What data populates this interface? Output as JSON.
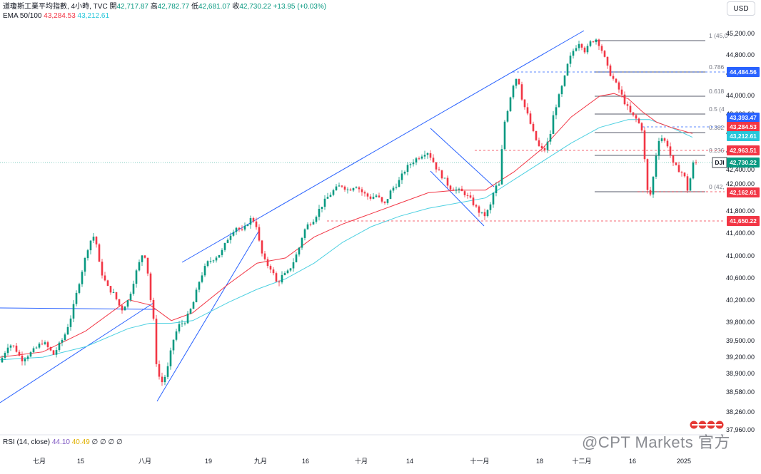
{
  "header": {
    "symbol_title": "道瓊斯工業平均指數, 4小時, TVC",
    "ohlc": [
      {
        "label": "開",
        "value": "42,717.87"
      },
      {
        "label": "高",
        "value": "42,782.77"
      },
      {
        "label": "低",
        "value": "42,681.07"
      },
      {
        "label": "收",
        "value": "42,730.22"
      }
    ],
    "change": "+13.95 (+0.03%)",
    "ema_label": "EMA 50/100",
    "ema50_value": "43,284.53",
    "ema100_value": "43,212.61",
    "currency": "USD"
  },
  "rsi": {
    "label": "RSI (14, close)",
    "value1": "44.10",
    "value2": "40.49",
    "placeholders": "∅ ∅ ∅ ∅"
  },
  "watermark": "@CPT Markets 官方",
  "colors": {
    "up": "#089981",
    "down": "#f23645",
    "ema50": "#f23645",
    "ema100": "#4dd0e1",
    "trendline": "#2962ff",
    "fib": "#787b86",
    "support": "#f23645",
    "resistance_dashed": "#2962ff"
  },
  "chart_data": {
    "type": "candlestick",
    "title": "道瓊斯工業平均指數, 4小時, TVC",
    "ylim": [
      37800,
      45450
    ],
    "y_ticks": [
      "45,200.00",
      "44,800.00",
      "44,400.00",
      "44,000.00",
      "43,600.00",
      "43,200.00",
      "42,800.00",
      "42,400.00",
      "42,000.00",
      "41,800.00",
      "41,400.00",
      "41,000.00",
      "40,600.00",
      "40,200.00",
      "39,800.00",
      "39,500.00",
      "39,200.00",
      "38,900.00",
      "38,580.00",
      "38,260.00",
      "37,960.00"
    ],
    "x_ticks": [
      "七月",
      "15",
      "八月",
      "19",
      "九月",
      "16",
      "十月",
      "14",
      "十一月",
      "18",
      "十二月",
      "16",
      "2025"
    ],
    "price_path": [
      [
        0,
        38900
      ],
      [
        12,
        39250
      ],
      [
        20,
        39200
      ],
      [
        30,
        38950
      ],
      [
        45,
        39100
      ],
      [
        60,
        39300
      ],
      [
        75,
        39050
      ],
      [
        90,
        39400
      ],
      [
        100,
        39800
      ],
      [
        112,
        40500
      ],
      [
        125,
        41200
      ],
      [
        133,
        41350
      ],
      [
        140,
        40700
      ],
      [
        150,
        40350
      ],
      [
        160,
        40200
      ],
      [
        170,
        39900
      ],
      [
        180,
        40100
      ],
      [
        190,
        40600
      ],
      [
        200,
        41000
      ],
      [
        205,
        40900
      ],
      [
        210,
        40200
      ],
      [
        215,
        39700
      ],
      [
        220,
        38700
      ],
      [
        228,
        38500
      ],
      [
        235,
        38800
      ],
      [
        242,
        39300
      ],
      [
        250,
        39600
      ],
      [
        260,
        39700
      ],
      [
        270,
        40000
      ],
      [
        280,
        40500
      ],
      [
        290,
        40800
      ],
      [
        300,
        40900
      ],
      [
        310,
        41000
      ],
      [
        320,
        41300
      ],
      [
        330,
        41500
      ],
      [
        340,
        41400
      ],
      [
        350,
        41650
      ],
      [
        358,
        41600
      ],
      [
        365,
        41050
      ],
      [
        372,
        40800
      ],
      [
        380,
        40700
      ],
      [
        388,
        40400
      ],
      [
        395,
        40550
      ],
      [
        402,
        40600
      ],
      [
        410,
        40800
      ],
      [
        418,
        41050
      ],
      [
        425,
        41400
      ],
      [
        432,
        41550
      ],
      [
        440,
        41650
      ],
      [
        448,
        41850
      ],
      [
        458,
        42050
      ],
      [
        468,
        42200
      ],
      [
        478,
        42300
      ],
      [
        488,
        42200
      ],
      [
        498,
        42300
      ],
      [
        508,
        42150
      ],
      [
        518,
        42050
      ],
      [
        528,
        42100
      ],
      [
        538,
        41900
      ],
      [
        548,
        42200
      ],
      [
        558,
        42350
      ],
      [
        568,
        42600
      ],
      [
        578,
        42750
      ],
      [
        588,
        42850
      ],
      [
        598,
        42950
      ],
      [
        605,
        42800
      ],
      [
        612,
        42600
      ],
      [
        620,
        42450
      ],
      [
        630,
        42250
      ],
      [
        640,
        42200
      ],
      [
        650,
        42150
      ],
      [
        660,
        42000
      ],
      [
        670,
        41800
      ],
      [
        678,
        41700
      ],
      [
        686,
        41850
      ],
      [
        693,
        42250
      ],
      [
        700,
        42300
      ],
      [
        705,
        43400
      ],
      [
        712,
        43800
      ],
      [
        718,
        44200
      ],
      [
        725,
        44400
      ],
      [
        732,
        43900
      ],
      [
        740,
        43600
      ],
      [
        748,
        43250
      ],
      [
        756,
        43000
      ],
      [
        762,
        42950
      ],
      [
        770,
        43200
      ],
      [
        776,
        43700
      ],
      [
        782,
        43950
      ],
      [
        790,
        44300
      ],
      [
        796,
        44650
      ],
      [
        804,
        44900
      ],
      [
        812,
        45050
      ],
      [
        820,
        44850
      ],
      [
        828,
        45050
      ],
      [
        836,
        45100
      ],
      [
        844,
        44850
      ],
      [
        852,
        44500
      ],
      [
        860,
        44300
      ],
      [
        868,
        44100
      ],
      [
        876,
        43850
      ],
      [
        884,
        43650
      ],
      [
        892,
        43550
      ],
      [
        900,
        43350
      ],
      [
        906,
        42200
      ],
      [
        912,
        42100
      ],
      [
        918,
        42800
      ],
      [
        924,
        43250
      ],
      [
        930,
        43150
      ],
      [
        936,
        43050
      ],
      [
        942,
        42700
      ],
      [
        950,
        42600
      ],
      [
        958,
        42500
      ],
      [
        964,
        42150
      ],
      [
        970,
        42700
      ],
      [
        976,
        42730
      ]
    ],
    "ema50_path": [
      [
        0,
        39000
      ],
      [
        60,
        39100
      ],
      [
        120,
        39500
      ],
      [
        180,
        40100
      ],
      [
        210,
        40000
      ],
      [
        240,
        39700
      ],
      [
        270,
        39850
      ],
      [
        320,
        40400
      ],
      [
        360,
        40800
      ],
      [
        400,
        40900
      ],
      [
        440,
        41300
      ],
      [
        480,
        41550
      ],
      [
        520,
        41750
      ],
      [
        560,
        41950
      ],
      [
        600,
        42150
      ],
      [
        640,
        42200
      ],
      [
        680,
        42200
      ],
      [
        720,
        42550
      ],
      [
        760,
        43000
      ],
      [
        800,
        43600
      ],
      [
        840,
        44000
      ],
      [
        860,
        44050
      ],
      [
        880,
        43950
      ],
      [
        900,
        43700
      ],
      [
        920,
        43500
      ],
      [
        940,
        43400
      ],
      [
        970,
        43284
      ]
    ],
    "ema100_path": [
      [
        0,
        38950
      ],
      [
        60,
        39000
      ],
      [
        120,
        39200
      ],
      [
        180,
        39550
      ],
      [
        210,
        39650
      ],
      [
        240,
        39650
      ],
      [
        270,
        39700
      ],
      [
        320,
        40050
      ],
      [
        360,
        40300
      ],
      [
        400,
        40500
      ],
      [
        440,
        40800
      ],
      [
        480,
        41200
      ],
      [
        520,
        41500
      ],
      [
        560,
        41700
      ],
      [
        600,
        41850
      ],
      [
        640,
        41950
      ],
      [
        680,
        42050
      ],
      [
        720,
        42400
      ],
      [
        760,
        42750
      ],
      [
        800,
        43100
      ],
      [
        840,
        43400
      ],
      [
        880,
        43550
      ],
      [
        910,
        43550
      ],
      [
        940,
        43400
      ],
      [
        970,
        43212
      ]
    ],
    "fibonacci": [
      {
        "level": "1",
        "label_text": "1 (45,0"
      },
      {
        "level": "0.786",
        "label_text": "0.786"
      },
      {
        "level": "0.618",
        "label_text": "0.618"
      },
      {
        "level": "0.5",
        "label_text": "0.5 (4"
      },
      {
        "level": "0.382",
        "label_text": "0.382"
      },
      {
        "level": "0.236",
        "label_text": "0.236"
      },
      {
        "level": "0",
        "label_text": "0 (42,"
      }
    ],
    "price_labels": [
      {
        "value": "44,484.56",
        "color": "#2962ff"
      },
      {
        "value": "43,393.47",
        "color": "#2962ff"
      },
      {
        "value": "43,284.53",
        "color": "#f23645"
      },
      {
        "value": "43,212.61",
        "color": "#26c6da"
      },
      {
        "value": "42,963.51",
        "color": "#f23645"
      },
      {
        "value": "42,730.22",
        "color": "#089981",
        "tag": "DJI"
      },
      {
        "value": "42,162.61",
        "color": "#f23645"
      },
      {
        "value": "41,650.22",
        "color": "#f23645"
      }
    ]
  }
}
